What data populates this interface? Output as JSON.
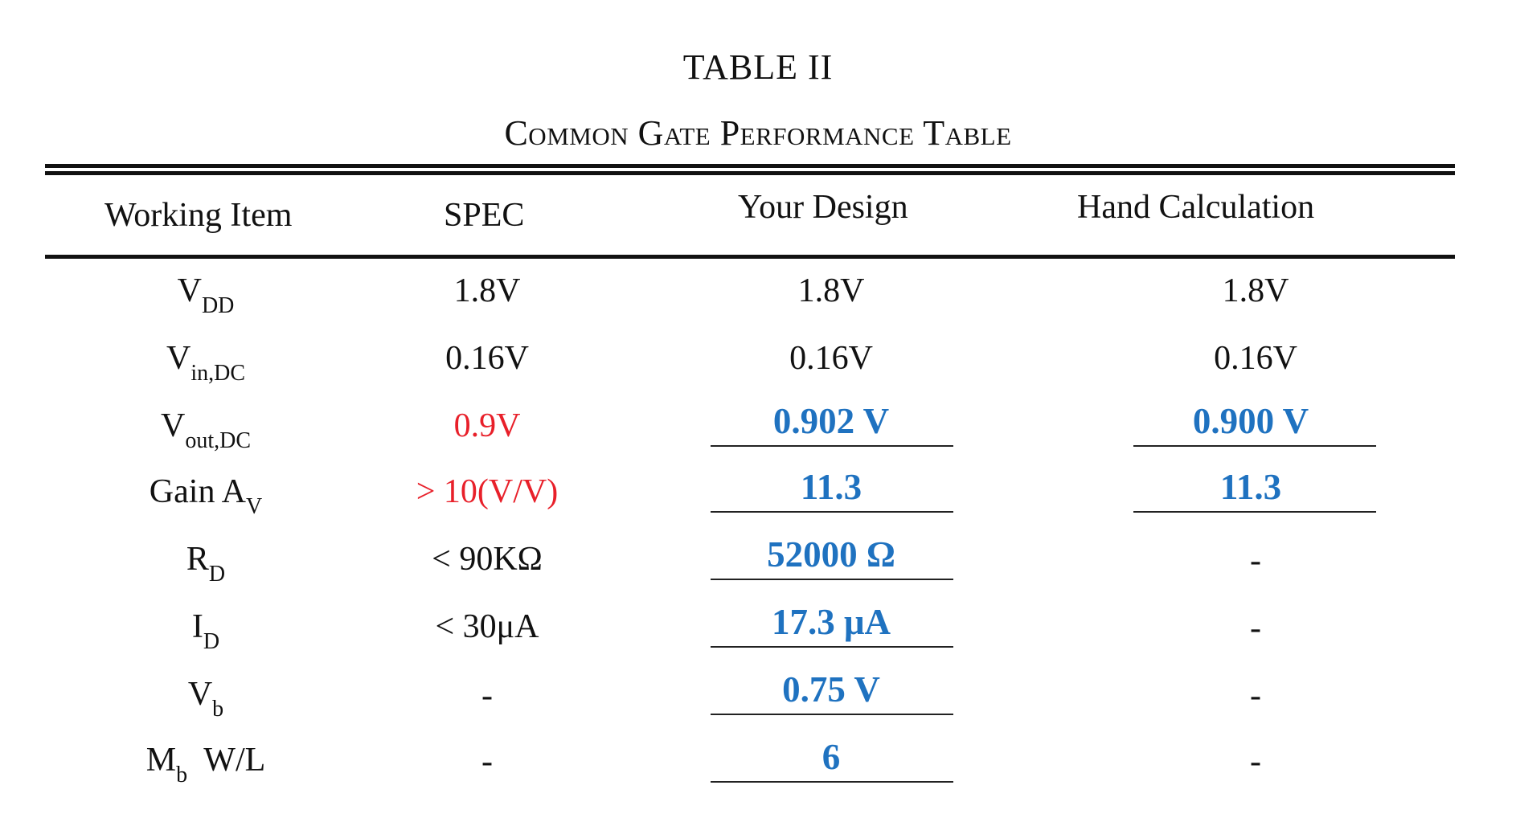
{
  "table": {
    "title": "TABLE II",
    "subtitle": "Common Gate Performance Table",
    "headers": [
      "Working Item",
      "SPEC",
      "Your Design",
      "Hand Calculation"
    ],
    "rows": [
      {
        "item": "V",
        "item_sub": "DD",
        "item_suffix": "",
        "spec": "1.8V",
        "design": "1.8V",
        "hand": "1.8V"
      },
      {
        "item": "V",
        "item_sub": "in,DC",
        "item_suffix": "",
        "spec": "0.16V",
        "design": "0.16V",
        "hand": "0.16V"
      },
      {
        "item": "V",
        "item_sub": "out,DC",
        "item_suffix": "",
        "spec": "0.9V",
        "design": "0.902 V",
        "hand": "0.900 V"
      },
      {
        "item": "Gain  A",
        "item_sub": "V",
        "item_suffix": "",
        "spec": "> 10(V/V)",
        "design": "11.3",
        "hand": "11.3"
      },
      {
        "item": "R",
        "item_sub": "D",
        "item_suffix": "",
        "spec": "< 90KΩ",
        "design": "52000 Ω",
        "hand": "-"
      },
      {
        "item": "I",
        "item_sub": "D",
        "item_suffix": "",
        "spec": "< 30μA",
        "design": "17.3 μA",
        "hand": "-"
      },
      {
        "item": "V",
        "item_sub": "b",
        "item_suffix": "",
        "spec": "-",
        "design": "0.75 V",
        "hand": "-"
      },
      {
        "item": "M",
        "item_sub": "b",
        "item_suffix": "  W/L",
        "spec": "-",
        "design": "6",
        "hand": "-"
      }
    ]
  },
  "colors": {
    "spec_highlight": "#e8202a",
    "filled_value": "#1f72c0"
  }
}
